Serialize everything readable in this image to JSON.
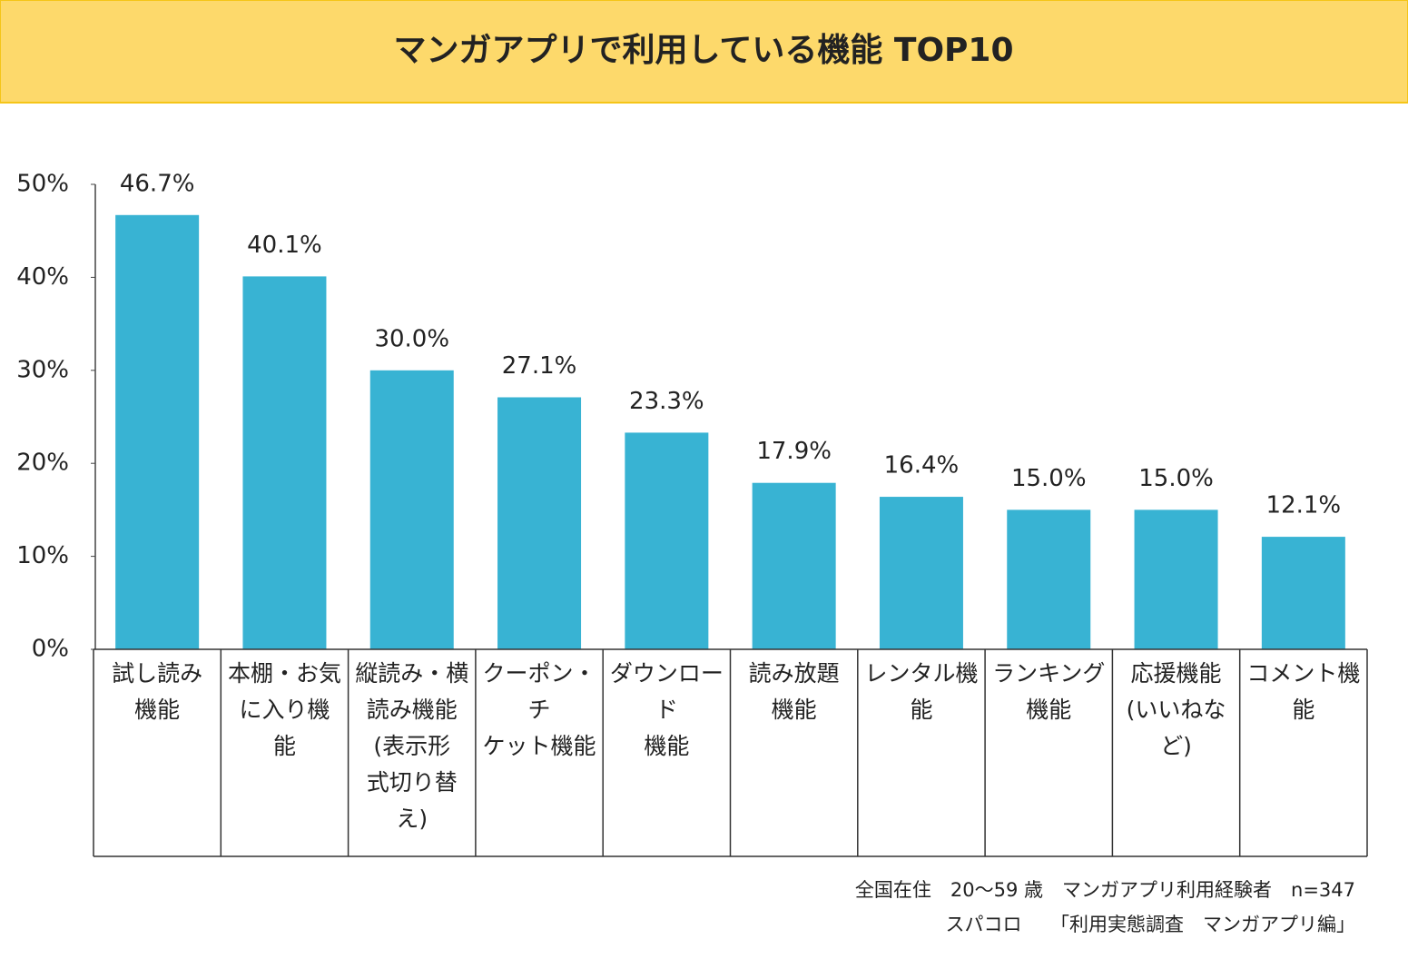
{
  "chart_data": {
    "type": "bar",
    "title": "マンガアプリで利用している機能 TOP10",
    "categories": [
      "試し読み\n機能",
      "本棚・お気\nに入り機\n能",
      "縦読み・横\n読み機能\n(表示形\n式切り替\nえ)",
      "クーポン・チ\nケット機能",
      "ダウンロード\n機能",
      "読み放題\n機能",
      "レンタル機\n能",
      "ランキング\n機能",
      "応援機能\n(いいねな\nど)",
      "コメント機\n能"
    ],
    "values": [
      46.7,
      40.1,
      30.0,
      27.1,
      23.3,
      17.9,
      16.4,
      15.0,
      15.0,
      12.1
    ],
    "value_labels": [
      "46.7%",
      "40.1%",
      "30.0%",
      "27.1%",
      "23.3%",
      "17.9%",
      "16.4%",
      "15.0%",
      "15.0%",
      "12.1%"
    ],
    "color": "#38b3d3",
    "ylim": [
      0,
      50
    ],
    "yticks": [
      {
        "value": 0,
        "label": "0%"
      },
      {
        "value": 10,
        "label": "10%"
      },
      {
        "value": 20,
        "label": "20%"
      },
      {
        "value": 30,
        "label": "30%"
      },
      {
        "value": 40,
        "label": "40%"
      },
      {
        "value": 50,
        "label": "50%"
      }
    ],
    "grid": false,
    "footnotes": [
      "全国在住　20～59 歳　マンガアプリ利用経験者　n=347",
      "スパコロ　　「利用実態調査　マンガアプリ編」"
    ]
  }
}
